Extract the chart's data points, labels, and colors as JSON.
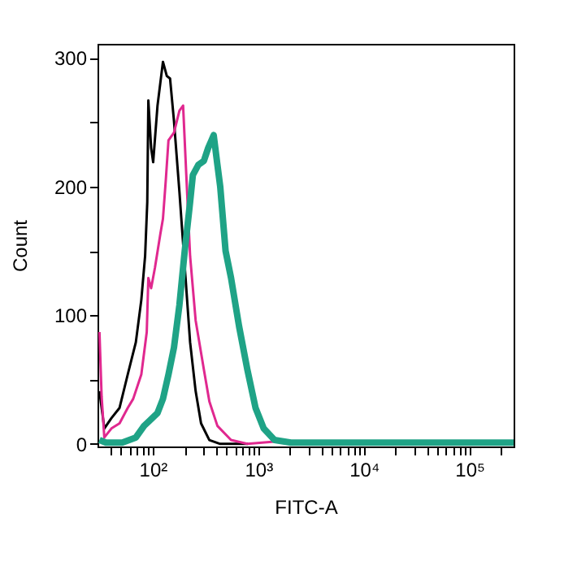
{
  "chart_data": {
    "type": "line",
    "xlabel": "FITC-A",
    "ylabel": "Count",
    "log": "x",
    "grid": false,
    "marker": "none",
    "line_style": "solid",
    "xlim": [
      30,
      262144
    ],
    "ylim": [
      -2,
      311
    ],
    "xticks": [
      {
        "value": 40,
        "label": null
      },
      {
        "value": 50,
        "label": null
      },
      {
        "value": 60,
        "label": null
      },
      {
        "value": 70,
        "label": null
      },
      {
        "value": 80,
        "label": null
      },
      {
        "value": 90,
        "label": null
      },
      {
        "value": 100,
        "label": "10²"
      },
      {
        "value": 200,
        "label": null
      },
      {
        "value": 300,
        "label": null
      },
      {
        "value": 400,
        "label": null
      },
      {
        "value": 500,
        "label": null
      },
      {
        "value": 600,
        "label": null
      },
      {
        "value": 700,
        "label": null
      },
      {
        "value": 800,
        "label": null
      },
      {
        "value": 900,
        "label": null
      },
      {
        "value": 1000,
        "label": "10³"
      },
      {
        "value": 2000,
        "label": null
      },
      {
        "value": 3000,
        "label": null
      },
      {
        "value": 4000,
        "label": null
      },
      {
        "value": 5000,
        "label": null
      },
      {
        "value": 6000,
        "label": null
      },
      {
        "value": 7000,
        "label": null
      },
      {
        "value": 8000,
        "label": null
      },
      {
        "value": 9000,
        "label": null
      },
      {
        "value": 10000,
        "label": "10⁴"
      },
      {
        "value": 20000,
        "label": null
      },
      {
        "value": 30000,
        "label": null
      },
      {
        "value": 40000,
        "label": null
      },
      {
        "value": 50000,
        "label": null
      },
      {
        "value": 60000,
        "label": null
      },
      {
        "value": 70000,
        "label": null
      },
      {
        "value": 80000,
        "label": null
      },
      {
        "value": 90000,
        "label": null
      },
      {
        "value": 100000,
        "label": "10⁵"
      },
      {
        "value": 200000,
        "label": null
      }
    ],
    "yticks": [
      0,
      {
        "value": 50,
        "label": null
      },
      100,
      {
        "value": 150,
        "label": null
      },
      200,
      {
        "value": 250,
        "label": null
      },
      300
    ],
    "series": [
      {
        "color": "#000000",
        "x": [
          31.3,
          34.8,
          40.6,
          48.5,
          58,
          69.2,
          78,
          84.7,
          88.8,
          90.9,
          96.6,
          101,
          111,
          125,
          136,
          146,
          159,
          179,
          201,
          226,
          255,
          287,
          344,
          436,
          800
        ],
        "values": [
          41,
          12,
          20,
          28,
          54,
          79,
          112,
          146,
          188,
          267,
          230,
          219,
          263,
          297,
          286,
          284,
          251,
          196,
          138,
          79,
          41,
          16,
          3,
          0,
          0
        ]
      },
      {
        "color": "#e0288f",
        "x": [
          31.3,
          32.8,
          34.8,
          40.6,
          48.5,
          58,
          65.3,
          78,
          87.8,
          90.9,
          96.6,
          105,
          118,
          125,
          133,
          141,
          159,
          179,
          194,
          208,
          226,
          255,
          305,
          344,
          410,
          552,
          787,
          1500,
          3000
        ],
        "values": [
          87,
          37,
          5,
          12,
          16,
          28,
          35,
          54,
          87,
          129,
          121,
          137,
          163,
          175,
          205,
          236,
          242,
          259,
          263,
          209,
          146,
          96,
          58,
          33,
          14,
          3,
          0,
          2,
          0
        ]
      },
      {
        "color": "#1fa386",
        "x": [
          31.3,
          36,
          51.4,
          69.2,
          82.8,
          93.1,
          111,
          125,
          141,
          159,
          179,
          201,
          226,
          240,
          271,
          305,
          335,
          378,
          410,
          436,
          490,
          552,
          659,
          787,
          942,
          1125,
          1425,
          2040,
          10000,
          100000,
          262144
        ],
        "values": [
          3,
          1,
          1,
          5,
          14,
          18,
          24,
          35,
          54,
          75,
          108,
          150,
          188,
          209,
          217,
          220,
          230,
          240,
          217,
          200,
          150,
          129,
          91,
          58,
          28,
          12,
          3,
          1,
          1,
          1,
          1
        ]
      }
    ]
  }
}
